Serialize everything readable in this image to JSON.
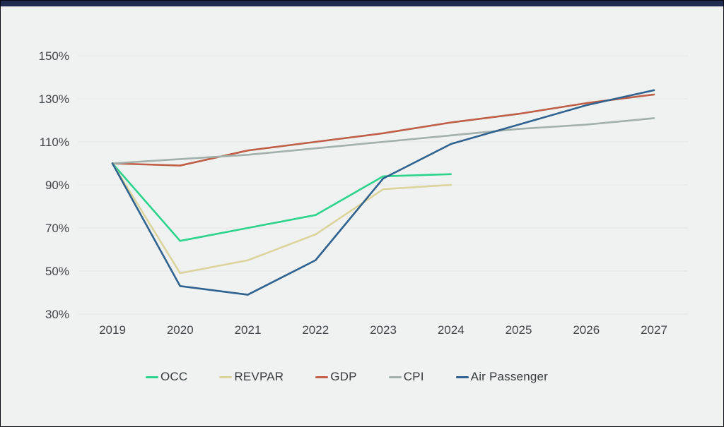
{
  "frame": {
    "top_bar_color": "#1f2b4e",
    "background_color": "#f0f2f1",
    "border_color": "#05080f",
    "gridline_color": "#e2e5e3",
    "axis_label_color": "#41474a"
  },
  "chart_data": {
    "type": "line",
    "title": "",
    "x_labels": [
      "2019",
      "2020",
      "2021",
      "2022",
      "2023",
      "2024",
      "2025",
      "2026",
      "2027"
    ],
    "y_axis": {
      "unit": "%",
      "min": 30,
      "max": 150,
      "tick_labels": [
        "150%",
        "130%",
        "110%",
        "90%",
        "70%",
        "50%",
        "30%"
      ],
      "tick_values": [
        150,
        130,
        110,
        90,
        70,
        50,
        30
      ]
    },
    "grid": "horizontal-only",
    "legend_position": "bottom",
    "series": [
      {
        "name": "OCC",
        "color": "#2bd38c",
        "values": [
          100,
          64,
          70,
          76,
          94,
          95
        ]
      },
      {
        "name": "REVPAR",
        "color": "#dbd49c",
        "values": [
          100,
          49,
          55,
          67,
          88,
          90
        ]
      },
      {
        "name": "GDP",
        "color": "#c05f48",
        "values": [
          100,
          99,
          106,
          110,
          114,
          119,
          123,
          128,
          132
        ]
      },
      {
        "name": "CPI",
        "color": "#a2b0ac",
        "values": [
          100,
          102,
          104,
          107,
          110,
          113,
          116,
          118,
          121
        ]
      },
      {
        "name": "Air Passenger",
        "color": "#2f628e",
        "values": [
          100,
          43,
          39,
          55,
          93,
          109,
          118,
          127,
          134
        ]
      }
    ]
  }
}
